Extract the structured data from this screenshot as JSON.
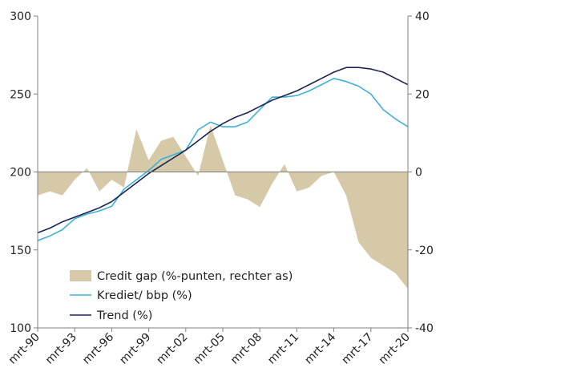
{
  "chart_data": {
    "type": "line",
    "x": [
      "mrt-90",
      "mrt-91",
      "mrt-92",
      "mrt-93",
      "mrt-94",
      "mrt-95",
      "mrt-96",
      "mrt-97",
      "mrt-98",
      "mrt-99",
      "mrt-00",
      "mrt-01",
      "mrt-02",
      "mrt-03",
      "mrt-04",
      "mrt-05",
      "mrt-06",
      "mrt-07",
      "mrt-08",
      "mrt-09",
      "mrt-10",
      "mrt-11",
      "mrt-12",
      "mrt-13",
      "mrt-14",
      "mrt-15",
      "mrt-16",
      "mrt-17",
      "mrt-18",
      "mrt-19",
      "mrt-20"
    ],
    "x_tick_labels": [
      "mrt-90",
      "mrt-93",
      "mrt-96",
      "mrt-99",
      "mrt-02",
      "mrt-05",
      "mrt-08",
      "mrt-11",
      "mrt-14",
      "mrt-17",
      "mrt-20"
    ],
    "left_axis": {
      "ylim": [
        100,
        300
      ],
      "ticks": [
        "100",
        "150",
        "200",
        "250",
        "300"
      ]
    },
    "right_axis": {
      "ylim": [
        -40,
        40
      ],
      "ticks": [
        "-40",
        "-20",
        "0",
        "20",
        "40"
      ]
    },
    "series": [
      {
        "name": "Credit gap (%-punten, rechter as)",
        "type": "area",
        "axis": "right",
        "color": "#d6c9a8",
        "values": [
          -6,
          -5,
          -6,
          -2,
          1,
          -5,
          -2,
          -4,
          11,
          3,
          8,
          9,
          4,
          -1,
          12,
          3,
          -6,
          -7,
          -9,
          -3,
          2,
          -5,
          -4,
          -1,
          0,
          -6,
          -18,
          -22,
          -24,
          -26,
          -30
        ]
      },
      {
        "name": "Krediet/ bbp (%)",
        "type": "line",
        "axis": "left",
        "color": "#3eb0d9",
        "values": [
          156,
          159,
          163,
          170,
          173,
          175,
          178,
          189,
          195,
          201,
          208,
          211,
          214,
          227,
          232,
          229,
          229,
          232,
          240,
          248,
          248,
          249,
          252,
          256,
          260,
          258,
          255,
          250,
          240,
          234,
          229
        ]
      },
      {
        "name": "Trend (%)",
        "type": "line",
        "axis": "left",
        "color": "#1b2453",
        "values": [
          161,
          164,
          168,
          171,
          174,
          177,
          181,
          187,
          193,
          199,
          204,
          209,
          214,
          220,
          226,
          231,
          235,
          238,
          242,
          246,
          249,
          252,
          256,
          260,
          264,
          267,
          267,
          266,
          264,
          260,
          256
        ]
      }
    ],
    "legend_position": "bottom-left",
    "grid": false
  }
}
